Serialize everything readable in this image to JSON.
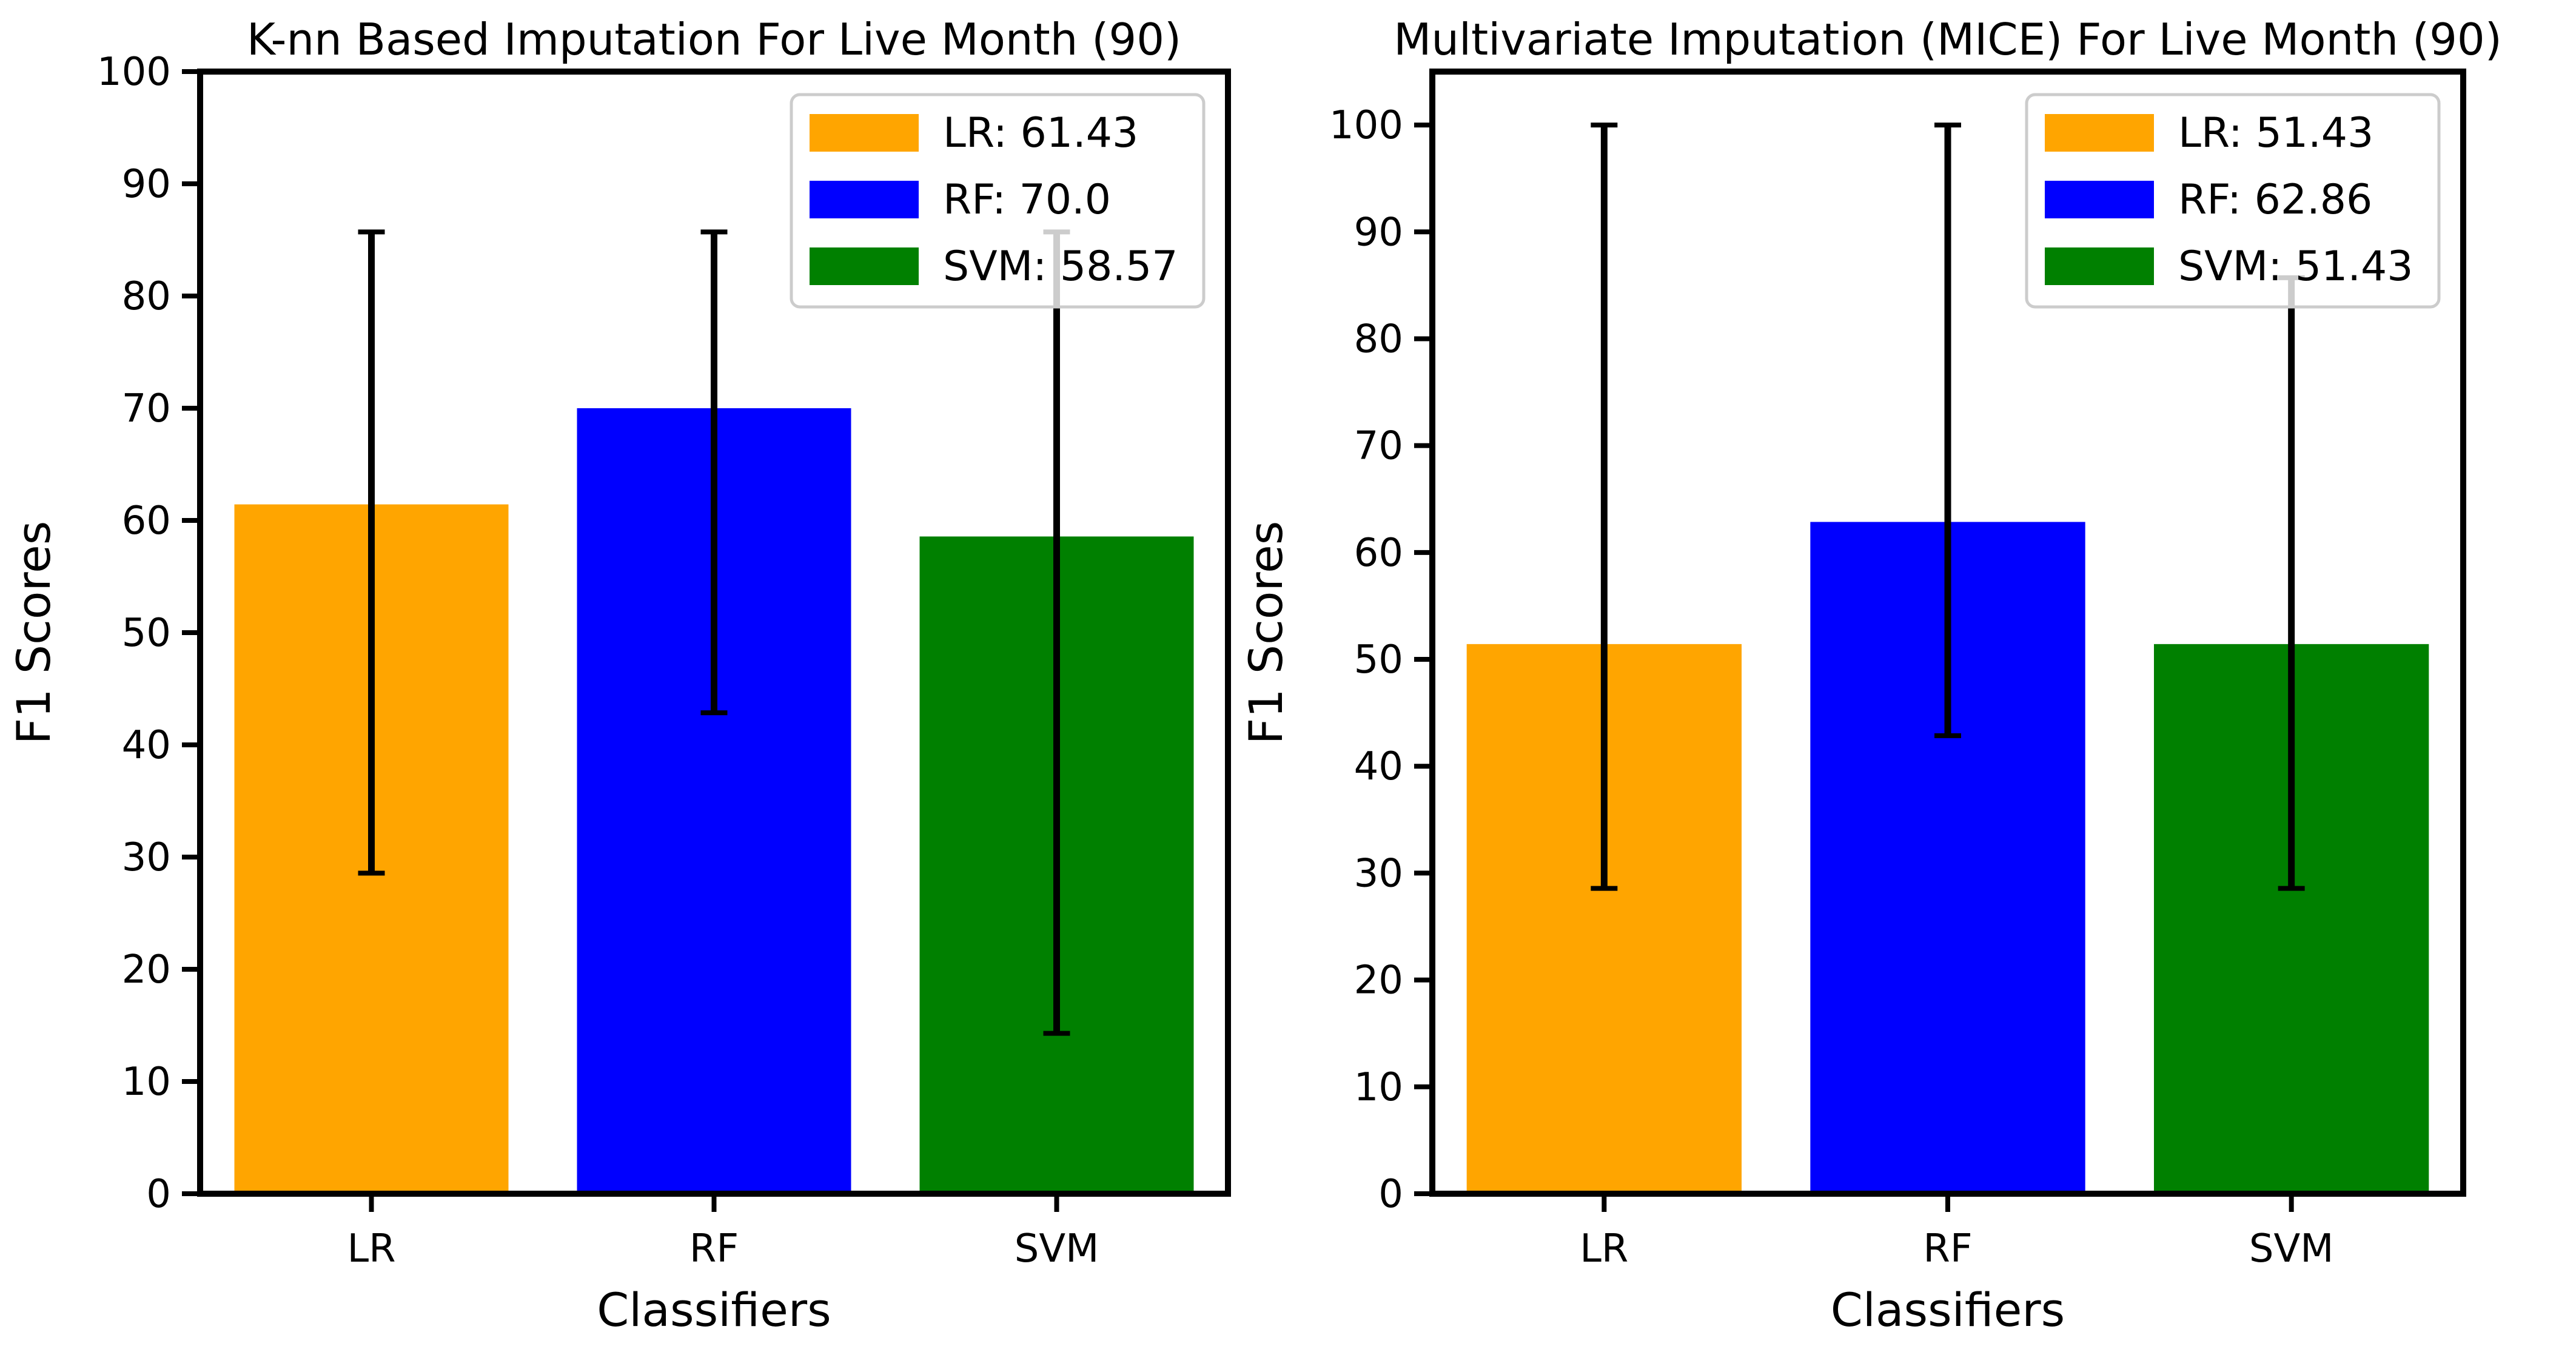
{
  "chart_data": [
    {
      "type": "bar",
      "title": "K-nn Based Imputation For Live Month (90)",
      "xlabel": "Classifiers",
      "ylabel": "F1 Scores",
      "categories": [
        "LR",
        "RF",
        "SVM"
      ],
      "values": [
        61.43,
        70.0,
        58.57
      ],
      "error_low": [
        28.57,
        42.86,
        14.29
      ],
      "error_high": [
        85.71,
        85.71,
        85.71
      ],
      "colors": [
        "#ffa500",
        "#0000ff",
        "#008000"
      ],
      "ylim": [
        0,
        100
      ],
      "yticks": [
        0,
        10,
        20,
        30,
        40,
        50,
        60,
        70,
        80,
        90,
        100
      ],
      "grid": false,
      "legend_position": "top-right",
      "legend": [
        "LR: 61.43",
        "RF: 70.0",
        "SVM: 58.57"
      ]
    },
    {
      "type": "bar",
      "title": "Multivariate Imputation (MICE) For Live Month (90)",
      "xlabel": "Classifiers",
      "ylabel": "F1 Scores",
      "categories": [
        "LR",
        "RF",
        "SVM"
      ],
      "values": [
        51.43,
        62.86,
        51.43
      ],
      "error_low": [
        28.57,
        42.86,
        28.57
      ],
      "error_high": [
        100,
        100,
        85.71
      ],
      "colors": [
        "#ffa500",
        "#0000ff",
        "#008000"
      ],
      "ylim": [
        0,
        105
      ],
      "yticks": [
        0,
        10,
        20,
        30,
        40,
        50,
        60,
        70,
        80,
        90,
        100
      ],
      "grid": false,
      "legend_position": "top-right",
      "legend": [
        "LR: 51.43",
        "RF: 62.86",
        "SVM: 51.43"
      ]
    }
  ]
}
